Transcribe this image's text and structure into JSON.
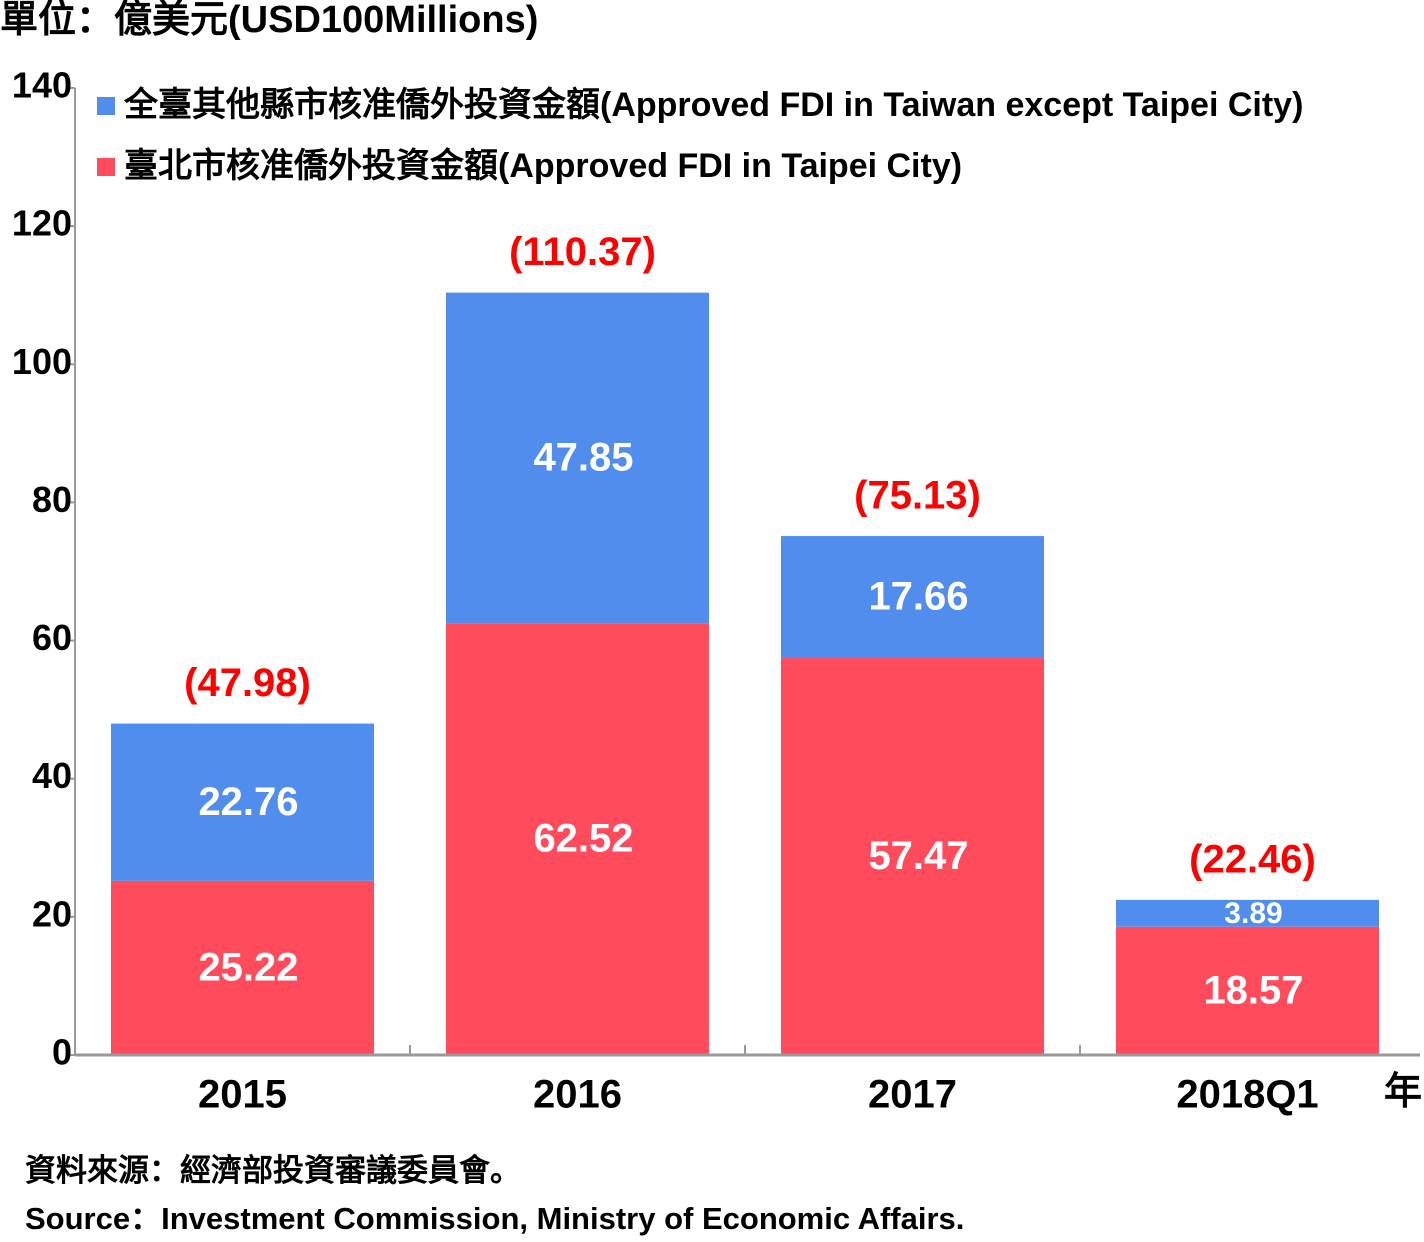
{
  "chart_data": {
    "type": "stacked_bar",
    "title": "單位：億美元(USD100Millions)",
    "x_unit": "年",
    "categories": [
      "2015",
      "2016",
      "2017",
      "2018Q1"
    ],
    "series": [
      {
        "name": "臺北市核准僑外投資金額(Approved FDI in Taipei City)",
        "color": "#ff4b5c",
        "values": [
          25.22,
          62.52,
          57.47,
          18.57
        ]
      },
      {
        "name": "全臺其他縣市核准僑外投資金額(Approved FDI in Taiwan except Taipei City)",
        "color": "#508ded",
        "values": [
          22.76,
          47.85,
          17.66,
          3.89
        ]
      }
    ],
    "totals": {
      "values": [
        47.98,
        110.37,
        75.13,
        22.46
      ],
      "value_labels": [
        "(47.98)",
        "(110.37)",
        "(75.13)",
        "(22.46)"
      ],
      "color": "#ff0000"
    },
    "ylim": [
      0,
      140
    ],
    "yticks": [
      0,
      20,
      40,
      60,
      80,
      100,
      120,
      140
    ],
    "legend": "top-left",
    "source": [
      "資料來源：經濟部投資審議委員會。",
      "Source：Investment Commission, Ministry of Economic Affairs."
    ]
  }
}
